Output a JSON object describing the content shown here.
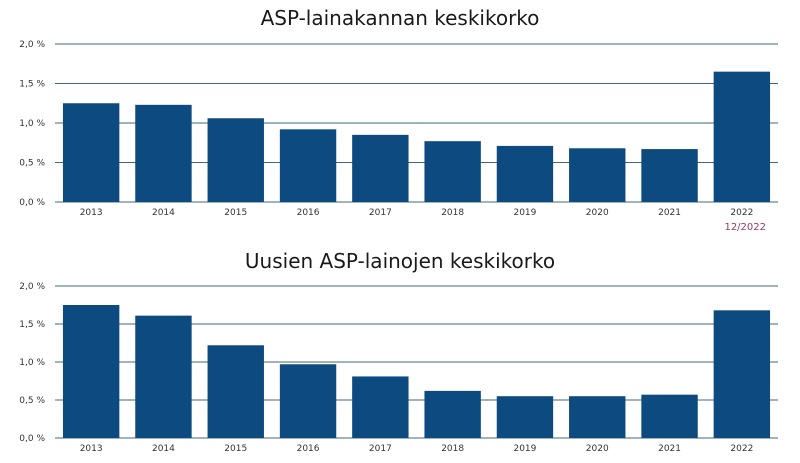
{
  "colors": {
    "bar": "#0d4a7f",
    "grid": "#3f6b77",
    "note": "#9b3a5a",
    "text": "#333333"
  },
  "chart_data": [
    {
      "type": "bar",
      "title": "ASP-lainakannan keskikorko",
      "categories": [
        "2013",
        "2014",
        "2015",
        "2016",
        "2017",
        "2018",
        "2019",
        "2020",
        "2021",
        "2022"
      ],
      "values": [
        1.25,
        1.23,
        1.06,
        0.92,
        0.85,
        0.77,
        0.71,
        0.68,
        0.67,
        1.65
      ],
      "ylim": [
        0,
        2.0
      ],
      "yticks": [
        0,
        0.5,
        1.0,
        1.5,
        2.0
      ],
      "ytick_labels": [
        "0,0 %",
        "0,5 %",
        "1,0 %",
        "1,5 %",
        "2,0 %"
      ],
      "grid": true,
      "note": "12/2022"
    },
    {
      "type": "bar",
      "title": "Uusien ASP-lainojen keskikorko",
      "categories": [
        "2013",
        "2014",
        "2015",
        "2016",
        "2017",
        "2018",
        "2019",
        "2020",
        "2021",
        "2022"
      ],
      "values": [
        1.75,
        1.61,
        1.22,
        0.97,
        0.81,
        0.62,
        0.55,
        0.55,
        0.57,
        1.68
      ],
      "ylim": [
        0,
        2.0
      ],
      "yticks": [
        0,
        0.5,
        1.0,
        1.5,
        2.0
      ],
      "ytick_labels": [
        "0,0 %",
        "0,5 %",
        "1,0 %",
        "1,5 %",
        "2,0 %"
      ],
      "grid": true
    }
  ]
}
